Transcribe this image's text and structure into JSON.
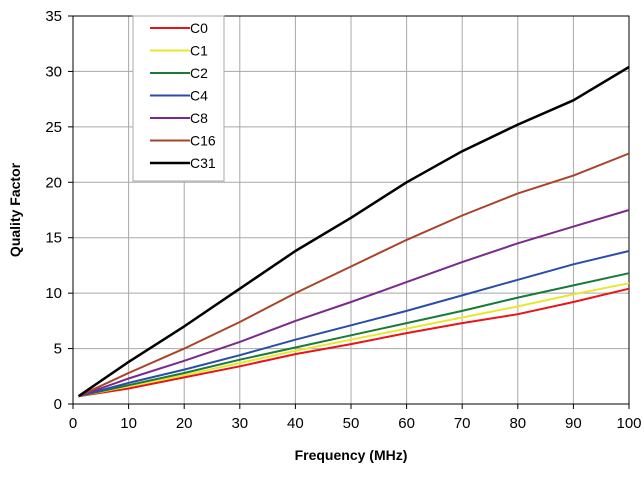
{
  "chart_data": {
    "type": "line",
    "title": "",
    "xlabel": "Frequency (MHz)",
    "ylabel": "Quality Factor",
    "xlim": [
      0,
      100
    ],
    "ylim": [
      0,
      35
    ],
    "xticks": [
      0,
      10,
      20,
      30,
      40,
      50,
      60,
      70,
      80,
      90,
      100
    ],
    "yticks": [
      0,
      5,
      10,
      15,
      20,
      25,
      30,
      35
    ],
    "grid": true,
    "legend_position": "top-left",
    "series": [
      {
        "name": "C0",
        "color": "#e8141a",
        "x": [
          1,
          10,
          20,
          30,
          40,
          50,
          60,
          70,
          80,
          90,
          100
        ],
        "y": [
          0.7,
          1.4,
          2.4,
          3.4,
          4.5,
          5.4,
          6.4,
          7.3,
          8.1,
          9.2,
          10.4
        ]
      },
      {
        "name": "C1",
        "color": "#e8e82a",
        "x": [
          1,
          10,
          20,
          30,
          40,
          50,
          60,
          70,
          80,
          90,
          100
        ],
        "y": [
          0.7,
          1.6,
          2.6,
          3.7,
          4.8,
          5.8,
          6.8,
          7.8,
          8.8,
          9.9,
          10.9
        ]
      },
      {
        "name": "C2",
        "color": "#1a7a3a",
        "x": [
          1,
          10,
          20,
          30,
          40,
          50,
          60,
          70,
          80,
          90,
          100
        ],
        "y": [
          0.7,
          1.7,
          2.8,
          4.0,
          5.1,
          6.2,
          7.3,
          8.4,
          9.6,
          10.7,
          11.8
        ]
      },
      {
        "name": "C4",
        "color": "#2a4ea8",
        "x": [
          1,
          10,
          20,
          30,
          40,
          50,
          60,
          70,
          80,
          90,
          100
        ],
        "y": [
          0.7,
          1.9,
          3.1,
          4.4,
          5.8,
          7.1,
          8.4,
          9.8,
          11.2,
          12.6,
          13.8
        ]
      },
      {
        "name": "C8",
        "color": "#7a2a8a",
        "x": [
          1,
          10,
          20,
          30,
          40,
          50,
          60,
          70,
          80,
          90,
          100
        ],
        "y": [
          0.7,
          2.3,
          3.9,
          5.6,
          7.5,
          9.2,
          11.0,
          12.8,
          14.5,
          16.0,
          17.5
        ]
      },
      {
        "name": "C16",
        "color": "#a8442a",
        "x": [
          1,
          10,
          20,
          30,
          40,
          50,
          60,
          70,
          80,
          90,
          100
        ],
        "y": [
          0.7,
          2.8,
          5.0,
          7.4,
          10.0,
          12.4,
          14.8,
          17.0,
          19.0,
          20.6,
          22.6
        ]
      },
      {
        "name": "C31",
        "color": "#000000",
        "x": [
          1,
          10,
          20,
          30,
          40,
          50,
          60,
          70,
          80,
          90,
          100
        ],
        "y": [
          0.7,
          3.8,
          7.0,
          10.4,
          13.8,
          16.8,
          20.0,
          22.8,
          25.2,
          27.4,
          30.4
        ]
      }
    ]
  }
}
